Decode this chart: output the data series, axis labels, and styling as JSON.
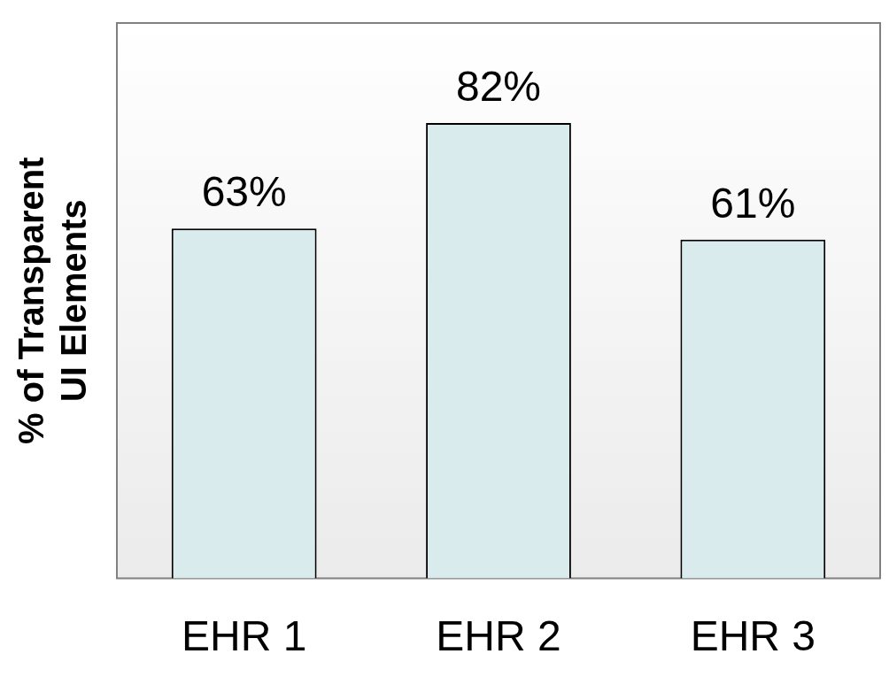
{
  "chart_data": {
    "type": "bar",
    "ylabel": "% of Transparent\nUI Elements",
    "categories": [
      "EHR 1",
      "EHR 2",
      "EHR 3"
    ],
    "values": [
      63,
      82,
      61
    ],
    "value_labels": [
      "63%",
      "82%",
      "61%"
    ],
    "color": "#daebee",
    "grid": false,
    "legend": false
  }
}
